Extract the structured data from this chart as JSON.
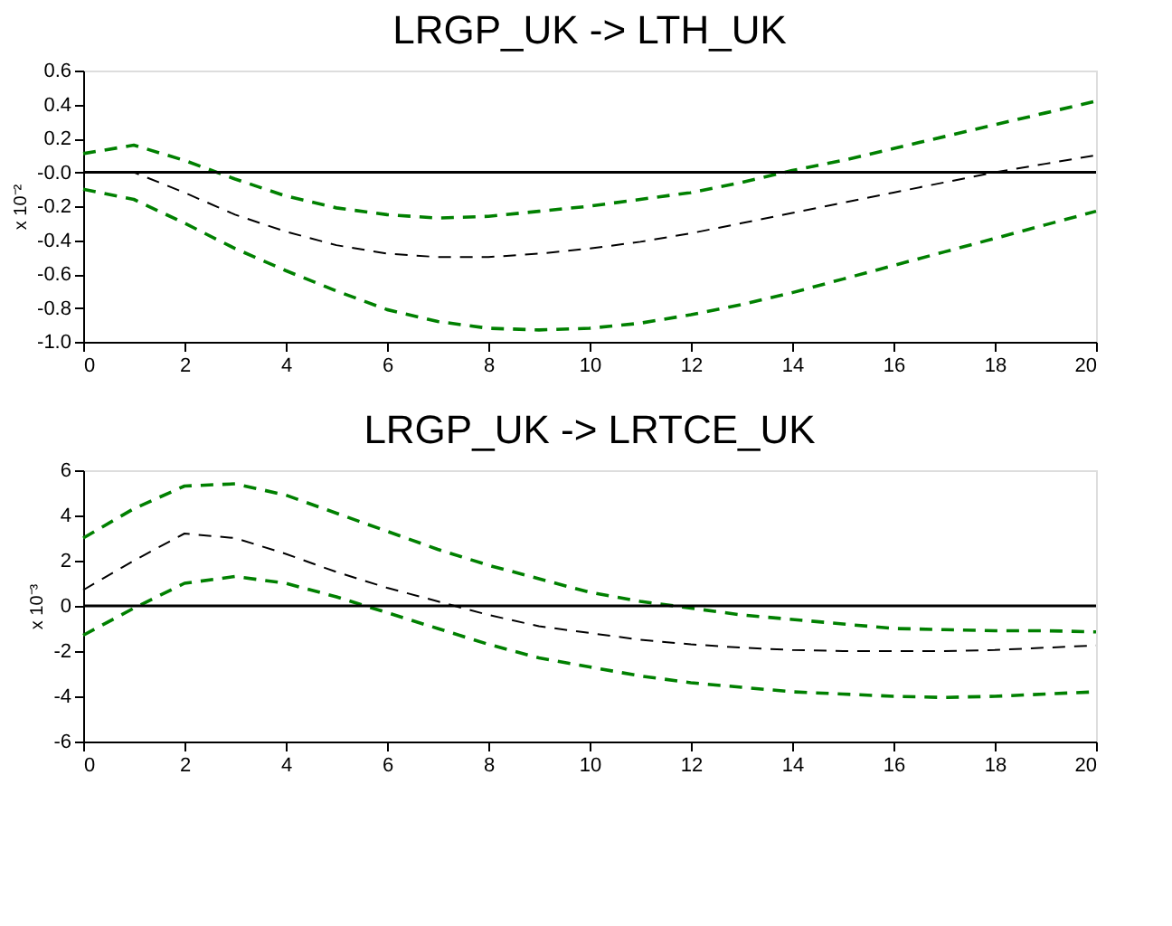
{
  "chart_data": [
    {
      "type": "line",
      "title": "LRGP_UK -> LTH_UK",
      "ylabel": "x 10⁻²",
      "x": [
        0,
        1,
        2,
        3,
        4,
        5,
        6,
        7,
        8,
        9,
        10,
        11,
        12,
        13,
        14,
        15,
        16,
        17,
        18,
        19,
        20
      ],
      "line_style": "dashed",
      "grid": false,
      "marker": "none",
      "xlim": [
        0,
        20
      ],
      "xticks": [
        0,
        2,
        4,
        6,
        8,
        10,
        12,
        14,
        16,
        18,
        20
      ],
      "ylim": [
        -1.0,
        0.6
      ],
      "yticks": [
        {
          "value": -1.0,
          "label": "-1.0"
        },
        -0.8,
        -0.6,
        -0.4,
        -0.2,
        {
          "value": 0,
          "label": "-0.0"
        },
        0.2,
        0.4,
        0.6
      ],
      "ref_lines": [
        {
          "axis": "y",
          "value": 0,
          "color": "#000000",
          "line_style": "solid"
        }
      ],
      "series": [
        {
          "color": "#008000",
          "values": [
            0.11,
            0.16,
            0.07,
            -0.04,
            -0.14,
            -0.21,
            -0.25,
            -0.27,
            -0.26,
            -0.23,
            -0.2,
            -0.16,
            -0.12,
            -0.06,
            0.01,
            0.07,
            0.14,
            0.21,
            0.28,
            0.35,
            0.42
          ]
        },
        {
          "color": "#000000",
          "values": [
            0.0,
            0.0,
            -0.12,
            -0.25,
            -0.35,
            -0.43,
            -0.48,
            -0.5,
            -0.5,
            -0.48,
            -0.45,
            -0.41,
            -0.36,
            -0.3,
            -0.24,
            -0.18,
            -0.12,
            -0.06,
            0.0,
            0.05,
            0.1
          ]
        },
        {
          "color": "#008000",
          "values": [
            -0.1,
            -0.16,
            -0.3,
            -0.45,
            -0.58,
            -0.7,
            -0.81,
            -0.88,
            -0.92,
            -0.93,
            -0.92,
            -0.89,
            -0.84,
            -0.78,
            -0.71,
            -0.63,
            -0.55,
            -0.47,
            -0.39,
            -0.31,
            -0.23
          ]
        }
      ]
    },
    {
      "type": "line",
      "title": "LRGP_UK -> LRTCE_UK",
      "ylabel": "x 10⁻³",
      "x": [
        0,
        1,
        2,
        3,
        4,
        5,
        6,
        7,
        8,
        9,
        10,
        11,
        12,
        13,
        14,
        15,
        16,
        17,
        18,
        19,
        20
      ],
      "line_style": "dashed",
      "grid": false,
      "marker": "none",
      "xlim": [
        0,
        20
      ],
      "xticks": [
        0,
        2,
        4,
        6,
        8,
        10,
        12,
        14,
        16,
        18,
        20
      ],
      "ylim": [
        -6,
        6
      ],
      "yticks": [
        -6,
        -4,
        -2,
        0,
        2,
        4,
        6
      ],
      "ref_lines": [
        {
          "axis": "y",
          "value": 0,
          "color": "#000000",
          "line_style": "solid"
        }
      ],
      "series": [
        {
          "color": "#008000",
          "values": [
            3.0,
            4.3,
            5.3,
            5.4,
            4.9,
            4.1,
            3.3,
            2.5,
            1.8,
            1.2,
            0.6,
            0.2,
            -0.1,
            -0.4,
            -0.6,
            -0.8,
            -1.0,
            -1.05,
            -1.1,
            -1.1,
            -1.15
          ]
        },
        {
          "color": "#000000",
          "values": [
            0.7,
            2.0,
            3.2,
            3.0,
            2.3,
            1.5,
            0.8,
            0.2,
            -0.4,
            -0.9,
            -1.2,
            -1.5,
            -1.7,
            -1.85,
            -1.95,
            -2.0,
            -2.0,
            -2.0,
            -1.95,
            -1.85,
            -1.75
          ]
        },
        {
          "color": "#008000",
          "values": [
            -1.3,
            -0.1,
            1.0,
            1.3,
            1.0,
            0.4,
            -0.3,
            -1.0,
            -1.7,
            -2.3,
            -2.7,
            -3.1,
            -3.4,
            -3.6,
            -3.8,
            -3.9,
            -4.0,
            -4.05,
            -4.0,
            -3.9,
            -3.8
          ]
        }
      ]
    }
  ]
}
